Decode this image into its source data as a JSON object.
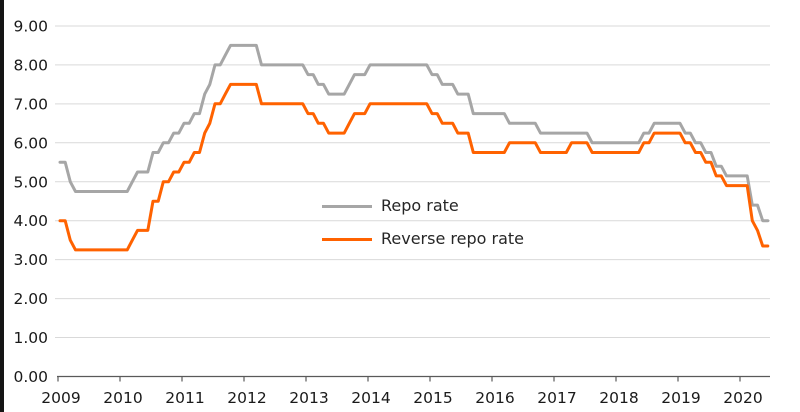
{
  "legend": {
    "items": [
      {
        "label": "Repo rate",
        "color": "#a6a6a6"
      },
      {
        "label": "Reverse repo rate",
        "color": "#ff6200"
      }
    ]
  },
  "colors": {
    "background": "#ffffff",
    "gridline": "#d9d9d9",
    "axis": "#595959",
    "text": "#1a1a1a",
    "repo_line": "#a6a6a6",
    "reverse_repo_line": "#ff6200",
    "left_edge_bar": "#151515"
  },
  "chart_data": {
    "type": "line",
    "title": "",
    "xlabel": "",
    "ylabel": "",
    "x_unit": "monthly",
    "x_start": "2009-01",
    "x_end": "2020-06",
    "x_tick_labels": [
      "2009",
      "2010",
      "2011",
      "2012",
      "2013",
      "2014",
      "2015",
      "2016",
      "2017",
      "2018",
      "2019",
      "2020"
    ],
    "y_tick_labels": [
      "0.00",
      "1.00",
      "2.00",
      "3.00",
      "4.00",
      "5.00",
      "6.00",
      "7.00",
      "8.00",
      "9.00"
    ],
    "ylim": [
      0,
      9
    ],
    "grid": "horizontal",
    "legend_position": "inside-center-left",
    "series": [
      {
        "name": "Repo rate",
        "color": "#a6a6a6",
        "values": [
          5.5,
          5.5,
          5.0,
          4.75,
          4.75,
          4.75,
          4.75,
          4.75,
          4.75,
          4.75,
          4.75,
          4.75,
          4.75,
          4.75,
          5.0,
          5.25,
          5.25,
          5.25,
          5.75,
          5.75,
          6.0,
          6.0,
          6.25,
          6.25,
          6.5,
          6.5,
          6.75,
          6.75,
          7.25,
          7.5,
          8.0,
          8.0,
          8.25,
          8.5,
          8.5,
          8.5,
          8.5,
          8.5,
          8.5,
          8.0,
          8.0,
          8.0,
          8.0,
          8.0,
          8.0,
          8.0,
          8.0,
          8.0,
          7.75,
          7.75,
          7.5,
          7.5,
          7.25,
          7.25,
          7.25,
          7.25,
          7.5,
          7.75,
          7.75,
          7.75,
          8.0,
          8.0,
          8.0,
          8.0,
          8.0,
          8.0,
          8.0,
          8.0,
          8.0,
          8.0,
          8.0,
          8.0,
          7.75,
          7.75,
          7.5,
          7.5,
          7.5,
          7.25,
          7.25,
          7.25,
          6.75,
          6.75,
          6.75,
          6.75,
          6.75,
          6.75,
          6.75,
          6.5,
          6.5,
          6.5,
          6.5,
          6.5,
          6.5,
          6.25,
          6.25,
          6.25,
          6.25,
          6.25,
          6.25,
          6.25,
          6.25,
          6.25,
          6.25,
          6.0,
          6.0,
          6.0,
          6.0,
          6.0,
          6.0,
          6.0,
          6.0,
          6.0,
          6.0,
          6.25,
          6.25,
          6.5,
          6.5,
          6.5,
          6.5,
          6.5,
          6.5,
          6.25,
          6.25,
          6.0,
          6.0,
          5.75,
          5.75,
          5.4,
          5.4,
          5.15,
          5.15,
          5.15,
          5.15,
          5.15,
          4.4,
          4.4,
          4.0,
          4.0
        ]
      },
      {
        "name": "Reverse repo rate",
        "color": "#ff6200",
        "values": [
          4.0,
          4.0,
          3.5,
          3.25,
          3.25,
          3.25,
          3.25,
          3.25,
          3.25,
          3.25,
          3.25,
          3.25,
          3.25,
          3.25,
          3.5,
          3.75,
          3.75,
          3.75,
          4.5,
          4.5,
          5.0,
          5.0,
          5.25,
          5.25,
          5.5,
          5.5,
          5.75,
          5.75,
          6.25,
          6.5,
          7.0,
          7.0,
          7.25,
          7.5,
          7.5,
          7.5,
          7.5,
          7.5,
          7.5,
          7.0,
          7.0,
          7.0,
          7.0,
          7.0,
          7.0,
          7.0,
          7.0,
          7.0,
          6.75,
          6.75,
          6.5,
          6.5,
          6.25,
          6.25,
          6.25,
          6.25,
          6.5,
          6.75,
          6.75,
          6.75,
          7.0,
          7.0,
          7.0,
          7.0,
          7.0,
          7.0,
          7.0,
          7.0,
          7.0,
          7.0,
          7.0,
          7.0,
          6.75,
          6.75,
          6.5,
          6.5,
          6.5,
          6.25,
          6.25,
          6.25,
          5.75,
          5.75,
          5.75,
          5.75,
          5.75,
          5.75,
          5.75,
          6.0,
          6.0,
          6.0,
          6.0,
          6.0,
          6.0,
          5.75,
          5.75,
          5.75,
          5.75,
          5.75,
          5.75,
          6.0,
          6.0,
          6.0,
          6.0,
          5.75,
          5.75,
          5.75,
          5.75,
          5.75,
          5.75,
          5.75,
          5.75,
          5.75,
          5.75,
          6.0,
          6.0,
          6.25,
          6.25,
          6.25,
          6.25,
          6.25,
          6.25,
          6.0,
          6.0,
          5.75,
          5.75,
          5.5,
          5.5,
          5.15,
          5.15,
          4.9,
          4.9,
          4.9,
          4.9,
          4.9,
          4.0,
          3.75,
          3.35,
          3.35
        ]
      }
    ]
  }
}
